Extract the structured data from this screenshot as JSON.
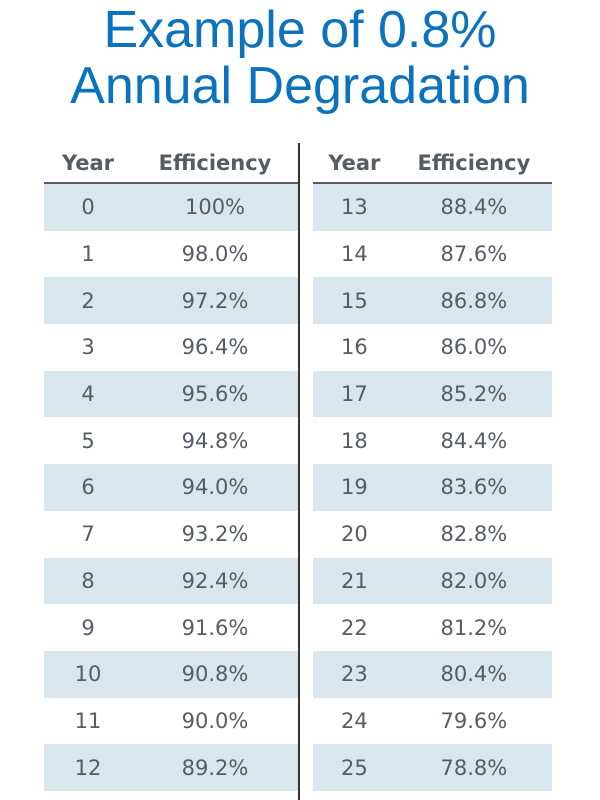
{
  "title": [
    "Example of 0.8%",
    "Annual Degradation"
  ],
  "chart_data": {
    "type": "table",
    "title": "Example of 0.8% Annual Degradation",
    "columns": [
      "Year",
      "Efficiency",
      "Year",
      "Efficiency"
    ],
    "rows_left": [
      [
        "0",
        "100%"
      ],
      [
        "1",
        "98.0%"
      ],
      [
        "2",
        "97.2%"
      ],
      [
        "3",
        "96.4%"
      ],
      [
        "4",
        "95.6%"
      ],
      [
        "5",
        "94.8%"
      ],
      [
        "6",
        "94.0%"
      ],
      [
        "7",
        "93.2%"
      ],
      [
        "8",
        "92.4%"
      ],
      [
        "9",
        "91.6%"
      ],
      [
        "10",
        "90.8%"
      ],
      [
        "11",
        "90.0%"
      ],
      [
        "12",
        "89.2%"
      ]
    ],
    "rows_right": [
      [
        "13",
        "88.4%"
      ],
      [
        "14",
        "87.6%"
      ],
      [
        "15",
        "86.8%"
      ],
      [
        "16",
        "86.0%"
      ],
      [
        "17",
        "85.2%"
      ],
      [
        "18",
        "84.4%"
      ],
      [
        "19",
        "83.6%"
      ],
      [
        "20",
        "82.8%"
      ],
      [
        "21",
        "82.0%"
      ],
      [
        "22",
        "81.2%"
      ],
      [
        "23",
        "80.4%"
      ],
      [
        "24",
        "79.6%"
      ],
      [
        "25",
        "78.8%"
      ]
    ]
  },
  "colors": {
    "title": "#0b72bd",
    "text": "#555c63",
    "row_shade": "#d9e6ee"
  }
}
